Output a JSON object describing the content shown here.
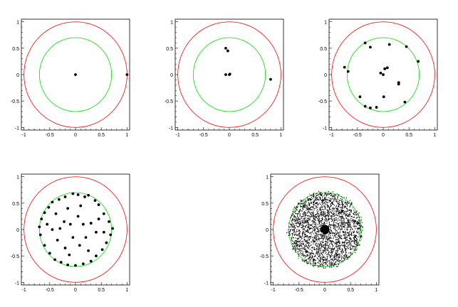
{
  "chart_data": [
    {
      "type": "scatter",
      "xlim": [
        -1.05,
        1.05
      ],
      "ylim": [
        -1.05,
        1.05
      ],
      "x_ticks": [
        "-1",
        "-0.5",
        "0",
        "0.5",
        "1"
      ],
      "y_ticks": [
        "1",
        "0.5",
        "0",
        "-0.5",
        "-1"
      ],
      "circles": [
        {
          "r": 1.0,
          "color": "#ff0000"
        },
        {
          "r": 0.7,
          "color": "#00dd00"
        }
      ],
      "points": [
        [
          0,
          0
        ],
        [
          1.0,
          0
        ]
      ]
    },
    {
      "type": "scatter",
      "xlim": [
        -1.05,
        1.05
      ],
      "ylim": [
        -1.05,
        1.05
      ],
      "x_ticks": [
        "-1",
        "-0.5",
        "0",
        "0.5",
        "1"
      ],
      "y_ticks": [
        "1",
        "0.5",
        "0",
        "-0.5",
        "-1"
      ],
      "circles": [
        {
          "r": 1.0,
          "color": "#ff0000"
        },
        {
          "r": 0.7,
          "color": "#00dd00"
        }
      ],
      "points": [
        [
          -0.07,
          0.5
        ],
        [
          -0.03,
          0.45
        ],
        [
          -0.07,
          0.0
        ],
        [
          0.0,
          0.0
        ],
        [
          0.01,
          0.01
        ],
        [
          0.8,
          -0.09
        ]
      ]
    },
    {
      "type": "scatter",
      "xlim": [
        -1.05,
        1.05
      ],
      "ylim": [
        -1.05,
        1.05
      ],
      "x_ticks": [
        "-1",
        "-0.5",
        "0",
        "0.5",
        "1"
      ],
      "y_ticks": [
        "1",
        "0.5",
        "0",
        "-0.5",
        "-1"
      ],
      "circles": [
        {
          "r": 1.0,
          "color": "#ff0000"
        },
        {
          "r": 0.7,
          "color": "#00dd00"
        }
      ],
      "points": [
        [
          -0.35,
          0.6
        ],
        [
          -0.25,
          0.52
        ],
        [
          0.12,
          0.57
        ],
        [
          0.45,
          0.53
        ],
        [
          0.68,
          0.25
        ],
        [
          -0.75,
          0.14
        ],
        [
          -0.68,
          0.06
        ],
        [
          0.03,
          0.11
        ],
        [
          -0.05,
          0.03
        ],
        [
          0.0,
          0.0
        ],
        [
          0.3,
          -0.15
        ],
        [
          0.3,
          -0.18
        ],
        [
          -0.45,
          -0.42
        ],
        [
          0.01,
          -0.42
        ],
        [
          -0.35,
          -0.6
        ],
        [
          -0.25,
          -0.63
        ],
        [
          -0.13,
          -0.62
        ],
        [
          0.42,
          -0.52
        ],
        [
          0.08,
          0.13
        ]
      ]
    },
    {
      "type": "scatter",
      "xlim": [
        -1.05,
        1.05
      ],
      "ylim": [
        -1.05,
        1.05
      ],
      "x_ticks": [
        "-1",
        "-0.5",
        "0",
        "0.5",
        "1"
      ],
      "y_ticks": [
        "1",
        "0.5",
        "0",
        "-0.5",
        "-1"
      ],
      "circles": [
        {
          "r": 1.0,
          "color": "#ff0000"
        },
        {
          "r": 0.7,
          "color": "#00dd00"
        }
      ],
      "points": [
        [
          -0.32,
          0.57
        ],
        [
          -0.45,
          0.52
        ],
        [
          -0.2,
          0.62
        ],
        [
          -0.05,
          0.68
        ],
        [
          0.05,
          0.66
        ],
        [
          0.18,
          0.62
        ],
        [
          0.25,
          0.65
        ],
        [
          0.38,
          0.55
        ],
        [
          0.45,
          0.47
        ],
        [
          0.55,
          0.3
        ],
        [
          0.65,
          0.15
        ],
        [
          0.72,
          0.02
        ],
        [
          0.68,
          -0.1
        ],
        [
          0.6,
          -0.25
        ],
        [
          0.52,
          -0.38
        ],
        [
          0.4,
          -0.5
        ],
        [
          0.3,
          -0.6
        ],
        [
          0.15,
          -0.65
        ],
        [
          0.0,
          -0.68
        ],
        [
          -0.15,
          -0.67
        ],
        [
          -0.28,
          -0.62
        ],
        [
          -0.4,
          -0.57
        ],
        [
          -0.5,
          -0.45
        ],
        [
          -0.6,
          -0.3
        ],
        [
          -0.68,
          -0.1
        ],
        [
          -0.7,
          0.05
        ],
        [
          -0.66,
          0.2
        ],
        [
          -0.6,
          0.32
        ],
        [
          -0.52,
          0.42
        ],
        [
          -0.38,
          0.3
        ],
        [
          -0.22,
          0.15
        ],
        [
          -0.1,
          0.1
        ],
        [
          0.05,
          0.25
        ],
        [
          0.15,
          0.1
        ],
        [
          0.3,
          0.12
        ],
        [
          0.4,
          -0.05
        ],
        [
          0.2,
          -0.15
        ],
        [
          0.08,
          -0.3
        ],
        [
          -0.05,
          -0.15
        ],
        [
          -0.2,
          -0.35
        ],
        [
          -0.35,
          -0.2
        ],
        [
          -0.45,
          0.0
        ],
        [
          -0.3,
          0.02
        ],
        [
          0.45,
          0.2
        ],
        [
          0.55,
          -0.05
        ],
        [
          -0.12,
          -0.48
        ],
        [
          0.25,
          -0.4
        ],
        [
          -0.55,
          0.1
        ],
        [
          0.1,
          0.45
        ],
        [
          -0.15,
          0.4
        ]
      ]
    },
    {
      "type": "scatter",
      "xlim": [
        -1.05,
        1.05
      ],
      "ylim": [
        -1.05,
        1.05
      ],
      "x_ticks": [
        "-1",
        "-0.5",
        "0",
        "0.5",
        "1"
      ],
      "y_ticks": [
        "1",
        "0.5",
        "0",
        "-0.5",
        "-1"
      ],
      "circles": [
        {
          "r": 1.0,
          "color": "#ff0000"
        },
        {
          "r": 0.7,
          "color": "#00dd00"
        }
      ],
      "points": [
        [
          0,
          0
        ]
      ],
      "dense_cloud": {
        "count": 2600,
        "radius": 0.75,
        "core_count": 400,
        "core_radius": 0.08,
        "ring_color": "#2a7a2a"
      }
    }
  ]
}
